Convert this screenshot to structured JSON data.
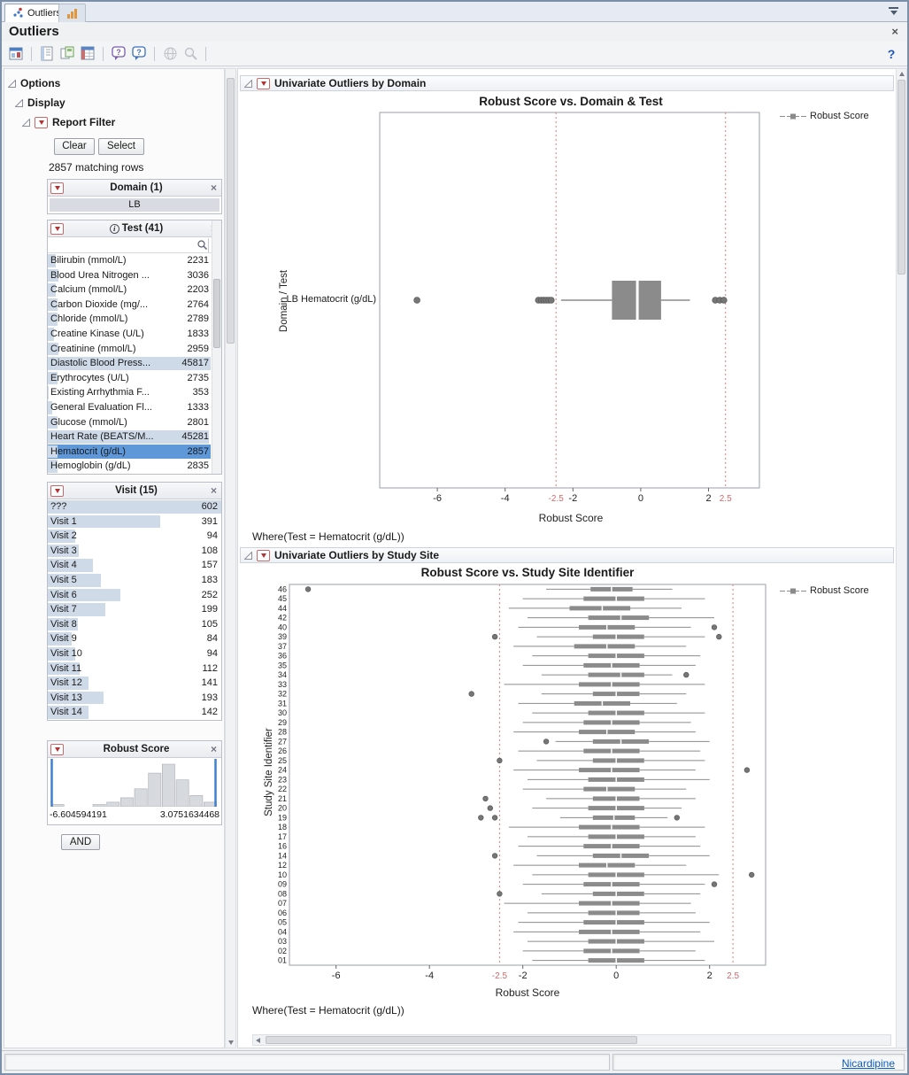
{
  "window": {
    "tabs": [
      {
        "label": "Outliers"
      },
      {
        "label": ""
      }
    ],
    "title": "Outliers",
    "status_link": "Nicardipine"
  },
  "ui": {
    "close_glyph": "×",
    "help_glyph": "?"
  },
  "toolbar": {
    "icons": [
      "report-icon",
      "journal-icon",
      "layout-icon",
      "data-table-icon",
      "save-icon",
      "help-bubble-icon",
      "script-help-icon",
      "web-icon",
      "zoom-icon"
    ]
  },
  "sidebar": {
    "options_label": "Options",
    "display_label": "Display",
    "report_filter": {
      "label": "Report Filter",
      "clear_button": "Clear",
      "select_button": "Select",
      "matching_rows": "2857 matching rows"
    },
    "filters": {
      "domain": {
        "title": "Domain (1)",
        "items": [
          {
            "label": "LB"
          }
        ]
      },
      "test": {
        "title": "Test (41)",
        "max_count": 45817,
        "items": [
          {
            "label": "Bilirubin (mmol/L)",
            "count": 2231
          },
          {
            "label": "Blood Urea Nitrogen ...",
            "count": 3036
          },
          {
            "label": "Calcium (mmol/L)",
            "count": 2203
          },
          {
            "label": "Carbon Dioxide (mg/...",
            "count": 2764
          },
          {
            "label": "Chloride (mmol/L)",
            "count": 2789
          },
          {
            "label": "Creatine Kinase (U/L)",
            "count": 1833
          },
          {
            "label": "Creatinine (mmol/L)",
            "count": 2959
          },
          {
            "label": "Diastolic Blood Press...",
            "count": 45817
          },
          {
            "label": "Erythrocytes (U/L)",
            "count": 2735
          },
          {
            "label": "Existing Arrhythmia F...",
            "count": 353
          },
          {
            "label": "General Evaluation Fl...",
            "count": 1333
          },
          {
            "label": "Glucose (mmol/L)",
            "count": 2801
          },
          {
            "label": "Heart Rate (BEATS/M...",
            "count": 45281
          },
          {
            "label": "Hematocrit (g/dL)",
            "count": 2857,
            "selected": true
          },
          {
            "label": "Hemoglobin (g/dL)",
            "count": 2835
          }
        ]
      },
      "visit": {
        "title": "Visit (15)",
        "max_count": 602,
        "items": [
          {
            "label": "???",
            "count": 602
          },
          {
            "label": "Visit 1",
            "count": 391
          },
          {
            "label": "Visit 2",
            "count": 94
          },
          {
            "label": "Visit 3",
            "count": 108
          },
          {
            "label": "Visit 4",
            "count": 157
          },
          {
            "label": "Visit 5",
            "count": 183
          },
          {
            "label": "Visit 6",
            "count": 252
          },
          {
            "label": "Visit 7",
            "count": 199
          },
          {
            "label": "Visit 8",
            "count": 105
          },
          {
            "label": "Visit 9",
            "count": 84
          },
          {
            "label": "Visit 10",
            "count": 94
          },
          {
            "label": "Visit 11",
            "count": 112
          },
          {
            "label": "Visit 12",
            "count": 141
          },
          {
            "label": "Visit 13",
            "count": 193
          },
          {
            "label": "Visit 14",
            "count": 142
          }
        ]
      },
      "robust_score": {
        "title": "Robust Score",
        "min_label": "-6.604594191",
        "max_label": "3.0751634468",
        "histogram": [
          1,
          0,
          0,
          1,
          2,
          4,
          8,
          15,
          19,
          12,
          5,
          2
        ]
      }
    },
    "and_button": "AND"
  },
  "main": {
    "sections": [
      {
        "title": "Univariate Outliers by Domain",
        "where": "Where(Test = Hematocrit (g/dL))"
      },
      {
        "title": "Univariate Outliers by Study Site",
        "where": "Where(Test = Hematocrit (g/dL))"
      }
    ]
  },
  "chart_data": [
    {
      "type": "boxplot",
      "orientation": "horizontal",
      "title": "Robust Score vs. Domain & Test",
      "xlabel": "Robust Score",
      "ylabel": "Domain / Test",
      "legend": "Robust Score",
      "xlim": [
        -7.7,
        3.5
      ],
      "xticks": [
        -6,
        -4,
        -2,
        0,
        2
      ],
      "limit_lines": [
        -2.5,
        2.5
      ],
      "rows": [
        {
          "label": "LB  Hematocrit (g/dL)",
          "lo": -2.35,
          "q1": -0.85,
          "med": -0.1,
          "q3": 0.6,
          "hi": 1.45,
          "outliers": [
            -6.6,
            -3.02,
            -2.93,
            -2.86,
            -2.79,
            -2.71,
            -2.64,
            2.2,
            2.33,
            2.45
          ]
        }
      ]
    },
    {
      "type": "boxplot",
      "orientation": "horizontal",
      "title": "Robust Score vs. Study Site Identifier",
      "xlabel": "Robust Score",
      "ylabel": "Study Site Identifier",
      "legend": "Robust Score",
      "xlim": [
        -7.0,
        3.2
      ],
      "xticks": [
        -6,
        -4,
        -2,
        0,
        2
      ],
      "limit_lines": [
        -2.5,
        2.5
      ],
      "rows": [
        {
          "label": "46",
          "lo": -1.5,
          "q1": -0.55,
          "med": -0.1,
          "q3": 0.35,
          "hi": 1.2,
          "outliers": [
            -6.6
          ]
        },
        {
          "label": "45",
          "lo": -2.0,
          "q1": -0.7,
          "med": 0.0,
          "q3": 0.6,
          "hi": 1.9,
          "outliers": []
        },
        {
          "label": "44",
          "lo": -2.3,
          "q1": -1.0,
          "med": -0.3,
          "q3": 0.3,
          "hi": 1.4,
          "outliers": []
        },
        {
          "label": "42",
          "lo": -1.9,
          "q1": -0.6,
          "med": 0.1,
          "q3": 0.7,
          "hi": 2.1,
          "outliers": []
        },
        {
          "label": "40",
          "lo": -2.1,
          "q1": -0.8,
          "med": -0.2,
          "q3": 0.4,
          "hi": 1.6,
          "outliers": [
            2.1
          ]
        },
        {
          "label": "39",
          "lo": -1.7,
          "q1": -0.5,
          "med": 0.0,
          "q3": 0.6,
          "hi": 1.9,
          "outliers": [
            -2.6,
            2.2
          ]
        },
        {
          "label": "37",
          "lo": -2.2,
          "q1": -0.9,
          "med": -0.2,
          "q3": 0.4,
          "hi": 1.5,
          "outliers": []
        },
        {
          "label": "36",
          "lo": -1.8,
          "q1": -0.6,
          "med": 0.0,
          "q3": 0.6,
          "hi": 1.8,
          "outliers": []
        },
        {
          "label": "35",
          "lo": -2.0,
          "q1": -0.7,
          "med": -0.1,
          "q3": 0.5,
          "hi": 1.7,
          "outliers": []
        },
        {
          "label": "34",
          "lo": -1.6,
          "q1": -0.6,
          "med": 0.1,
          "q3": 0.6,
          "hi": 1.2,
          "outliers": [
            1.5
          ]
        },
        {
          "label": "33",
          "lo": -2.4,
          "q1": -0.8,
          "med": -0.1,
          "q3": 0.5,
          "hi": 1.9,
          "outliers": []
        },
        {
          "label": "32",
          "lo": -1.6,
          "q1": -0.5,
          "med": 0.0,
          "q3": 0.5,
          "hi": 1.5,
          "outliers": [
            -3.1
          ]
        },
        {
          "label": "31",
          "lo": -2.1,
          "q1": -0.9,
          "med": -0.3,
          "q3": 0.3,
          "hi": 1.3,
          "outliers": []
        },
        {
          "label": "30",
          "lo": -1.8,
          "q1": -0.6,
          "med": 0.0,
          "q3": 0.6,
          "hi": 1.9,
          "outliers": []
        },
        {
          "label": "29",
          "lo": -2.0,
          "q1": -0.7,
          "med": -0.1,
          "q3": 0.5,
          "hi": 1.6,
          "outliers": []
        },
        {
          "label": "28",
          "lo": -2.2,
          "q1": -0.8,
          "med": -0.2,
          "q3": 0.4,
          "hi": 1.7,
          "outliers": []
        },
        {
          "label": "27",
          "lo": -1.3,
          "q1": -0.5,
          "med": 0.1,
          "q3": 0.7,
          "hi": 2.0,
          "outliers": [
            -1.5
          ]
        },
        {
          "label": "26",
          "lo": -2.1,
          "q1": -0.7,
          "med": -0.1,
          "q3": 0.5,
          "hi": 1.8,
          "outliers": []
        },
        {
          "label": "25",
          "lo": -1.7,
          "q1": -0.5,
          "med": 0.0,
          "q3": 0.6,
          "hi": 1.9,
          "outliers": [
            -2.5
          ]
        },
        {
          "label": "24",
          "lo": -2.2,
          "q1": -0.8,
          "med": -0.1,
          "q3": 0.5,
          "hi": 1.7,
          "outliers": [
            2.8
          ]
        },
        {
          "label": "23",
          "lo": -1.9,
          "q1": -0.6,
          "med": 0.0,
          "q3": 0.6,
          "hi": 2.0,
          "outliers": []
        },
        {
          "label": "22",
          "lo": -2.0,
          "q1": -0.7,
          "med": -0.2,
          "q3": 0.4,
          "hi": 1.5,
          "outliers": []
        },
        {
          "label": "21",
          "lo": -1.5,
          "q1": -0.5,
          "med": 0.0,
          "q3": 0.5,
          "hi": 1.7,
          "outliers": [
            -2.8
          ]
        },
        {
          "label": "20",
          "lo": -1.8,
          "q1": -0.6,
          "med": 0.0,
          "q3": 0.6,
          "hi": 1.4,
          "outliers": [
            -2.7
          ]
        },
        {
          "label": "19",
          "lo": -1.2,
          "q1": -0.5,
          "med": -0.05,
          "q3": 0.4,
          "hi": 1.1,
          "outliers": [
            -2.9,
            -2.6,
            1.3
          ]
        },
        {
          "label": "18",
          "lo": -2.3,
          "q1": -0.8,
          "med": -0.1,
          "q3": 0.5,
          "hi": 1.9,
          "outliers": []
        },
        {
          "label": "17",
          "lo": -1.9,
          "q1": -0.6,
          "med": 0.0,
          "q3": 0.6,
          "hi": 1.7,
          "outliers": []
        },
        {
          "label": "16",
          "lo": -2.1,
          "q1": -0.7,
          "med": -0.1,
          "q3": 0.5,
          "hi": 1.8,
          "outliers": []
        },
        {
          "label": "14",
          "lo": -1.7,
          "q1": -0.5,
          "med": 0.1,
          "q3": 0.7,
          "hi": 2.0,
          "outliers": [
            -2.6
          ]
        },
        {
          "label": "12",
          "lo": -2.2,
          "q1": -0.8,
          "med": -0.2,
          "q3": 0.4,
          "hi": 1.5,
          "outliers": []
        },
        {
          "label": "10",
          "lo": -1.8,
          "q1": -0.6,
          "med": 0.0,
          "q3": 0.6,
          "hi": 2.2,
          "outliers": [
            2.9
          ]
        },
        {
          "label": "09",
          "lo": -2.0,
          "q1": -0.7,
          "med": -0.1,
          "q3": 0.5,
          "hi": 1.9,
          "outliers": [
            2.1
          ]
        },
        {
          "label": "08",
          "lo": -1.6,
          "q1": -0.5,
          "med": 0.0,
          "q3": 0.6,
          "hi": 1.8,
          "outliers": [
            -2.5
          ]
        },
        {
          "label": "07",
          "lo": -2.4,
          "q1": -0.8,
          "med": -0.1,
          "q3": 0.5,
          "hi": 1.6,
          "outliers": []
        },
        {
          "label": "06",
          "lo": -1.9,
          "q1": -0.6,
          "med": 0.0,
          "q3": 0.5,
          "hi": 1.7,
          "outliers": []
        },
        {
          "label": "05",
          "lo": -2.1,
          "q1": -0.7,
          "med": 0.0,
          "q3": 0.6,
          "hi": 2.0,
          "outliers": []
        },
        {
          "label": "04",
          "lo": -2.2,
          "q1": -0.8,
          "med": -0.1,
          "q3": 0.5,
          "hi": 1.8,
          "outliers": []
        },
        {
          "label": "03",
          "lo": -1.9,
          "q1": -0.6,
          "med": 0.0,
          "q3": 0.6,
          "hi": 2.1,
          "outliers": []
        },
        {
          "label": "02",
          "lo": -2.0,
          "q1": -0.7,
          "med": -0.1,
          "q3": 0.5,
          "hi": 1.7,
          "outliers": []
        },
        {
          "label": "01",
          "lo": -1.8,
          "q1": -0.6,
          "med": 0.0,
          "q3": 0.6,
          "hi": 1.9,
          "outliers": []
        }
      ]
    }
  ]
}
